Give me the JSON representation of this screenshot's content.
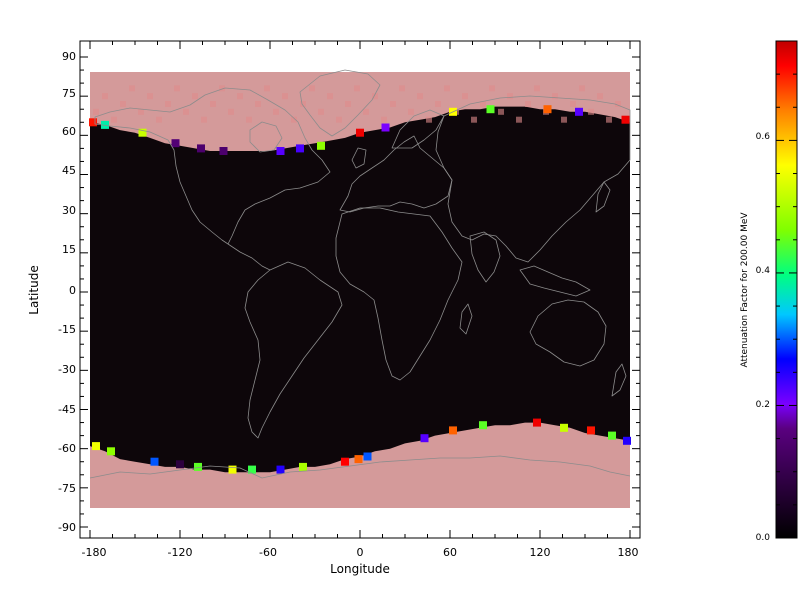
{
  "chart_data": {
    "type": "heatmap",
    "projection": "equirectangular world map with coastlines",
    "xlabel": "Longitude",
    "ylabel": "Latitude",
    "xlim": [
      -180,
      180
    ],
    "ylim": [
      -90,
      90
    ],
    "x_ticks": [
      "-180",
      "-120",
      "-60",
      "0",
      "60",
      "120",
      "180"
    ],
    "y_ticks": [
      "90",
      "75",
      "60",
      "45",
      "30",
      "15",
      "0",
      "-15",
      "-30",
      "-45",
      "-60",
      "-75",
      "-90"
    ],
    "colorbar": {
      "label": "Attenuation Factor for 200.00 MeV",
      "range": [
        0.0,
        0.75
      ],
      "ticks": [
        "0.0",
        "0.2",
        "0.4",
        "0.6"
      ],
      "colormap": [
        "#000000",
        "#5a0080",
        "#7a00ff",
        "#0000ff",
        "#00c8ff",
        "#00ff80",
        "#80ff00",
        "#ffff00",
        "#ff8000",
        "#ff0000",
        "#c00000"
      ]
    },
    "colors": {
      "background_field": "#0d060a",
      "polar_fill": "#d49a9a",
      "coastline": "#8c8c8c"
    },
    "north_boundary": [
      [
        -180,
        65
      ],
      [
        -170,
        64
      ],
      [
        -160,
        62
      ],
      [
        -150,
        61
      ],
      [
        -140,
        59
      ],
      [
        -130,
        57
      ],
      [
        -120,
        56
      ],
      [
        -110,
        55
      ],
      [
        -100,
        54
      ],
      [
        -90,
        54
      ],
      [
        -80,
        54
      ],
      [
        -70,
        54
      ],
      [
        -60,
        54
      ],
      [
        -50,
        55
      ],
      [
        -40,
        56
      ],
      [
        -30,
        57
      ],
      [
        -20,
        58
      ],
      [
        -10,
        59
      ],
      [
        0,
        61
      ],
      [
        10,
        62
      ],
      [
        20,
        63
      ],
      [
        30,
        65
      ],
      [
        40,
        66
      ],
      [
        50,
        67
      ],
      [
        60,
        69
      ],
      [
        70,
        70
      ],
      [
        80,
        70
      ],
      [
        90,
        71
      ],
      [
        100,
        71
      ],
      [
        110,
        71
      ],
      [
        120,
        70
      ],
      [
        130,
        70
      ],
      [
        140,
        69
      ],
      [
        150,
        69
      ],
      [
        160,
        68
      ],
      [
        170,
        67
      ],
      [
        180,
        65
      ]
    ],
    "south_boundary": [
      [
        -180,
        -59
      ],
      [
        -170,
        -61
      ],
      [
        -160,
        -64
      ],
      [
        -150,
        -65
      ],
      [
        -140,
        -66
      ],
      [
        -130,
        -67
      ],
      [
        -120,
        -67
      ],
      [
        -110,
        -68
      ],
      [
        -100,
        -68
      ],
      [
        -90,
        -69
      ],
      [
        -80,
        -69
      ],
      [
        -70,
        -69
      ],
      [
        -60,
        -69
      ],
      [
        -50,
        -68
      ],
      [
        -40,
        -67
      ],
      [
        -30,
        -67
      ],
      [
        -20,
        -66
      ],
      [
        -10,
        -64
      ],
      [
        0,
        -63
      ],
      [
        10,
        -61
      ],
      [
        20,
        -60
      ],
      [
        30,
        -58
      ],
      [
        40,
        -57
      ],
      [
        50,
        -55
      ],
      [
        60,
        -54
      ],
      [
        70,
        -53
      ],
      [
        80,
        -52
      ],
      [
        90,
        -51
      ],
      [
        100,
        -51
      ],
      [
        110,
        -50
      ],
      [
        120,
        -50
      ],
      [
        130,
        -51
      ],
      [
        140,
        -52
      ],
      [
        150,
        -54
      ],
      [
        160,
        -55
      ],
      [
        170,
        -56
      ],
      [
        180,
        -57
      ]
    ],
    "boundary_points": [
      {
        "lon": -178,
        "lat": 65,
        "v": 0.7
      },
      {
        "lon": -170,
        "lat": 64,
        "v": 0.38
      },
      {
        "lon": -145,
        "lat": 61,
        "v": 0.52
      },
      {
        "lon": -123,
        "lat": 57,
        "v": 0.15
      },
      {
        "lon": -106,
        "lat": 55,
        "v": 0.14
      },
      {
        "lon": -91,
        "lat": 54,
        "v": 0.14
      },
      {
        "lon": -53,
        "lat": 54,
        "v": 0.22
      },
      {
        "lon": -40,
        "lat": 55,
        "v": 0.23
      },
      {
        "lon": -26,
        "lat": 56,
        "v": 0.48
      },
      {
        "lon": 0,
        "lat": 61,
        "v": 0.72
      },
      {
        "lon": 17,
        "lat": 63,
        "v": 0.2
      },
      {
        "lon": 62,
        "lat": 69,
        "v": 0.56
      },
      {
        "lon": 87,
        "lat": 70,
        "v": 0.45
      },
      {
        "lon": 125,
        "lat": 70,
        "v": 0.66
      },
      {
        "lon": 146,
        "lat": 69,
        "v": 0.22
      },
      {
        "lon": 177,
        "lat": 66,
        "v": 0.72
      },
      {
        "lon": -176,
        "lat": -59,
        "v": 0.55
      },
      {
        "lon": -166,
        "lat": -61,
        "v": 0.48
      },
      {
        "lon": -137,
        "lat": -65,
        "v": 0.3
      },
      {
        "lon": -120,
        "lat": -66,
        "v": 0.08
      },
      {
        "lon": -108,
        "lat": -67,
        "v": 0.45
      },
      {
        "lon": -85,
        "lat": -68,
        "v": 0.55
      },
      {
        "lon": -72,
        "lat": -68,
        "v": 0.43
      },
      {
        "lon": -53,
        "lat": -68,
        "v": 0.25
      },
      {
        "lon": -38,
        "lat": -67,
        "v": 0.5
      },
      {
        "lon": -10,
        "lat": -65,
        "v": 0.71
      },
      {
        "lon": -1,
        "lat": -64,
        "v": 0.66
      },
      {
        "lon": 5,
        "lat": -63,
        "v": 0.3
      },
      {
        "lon": 43,
        "lat": -56,
        "v": 0.22
      },
      {
        "lon": 62,
        "lat": -53,
        "v": 0.66
      },
      {
        "lon": 82,
        "lat": -51,
        "v": 0.45
      },
      {
        "lon": 118,
        "lat": -50,
        "v": 0.72
      },
      {
        "lon": 136,
        "lat": -52,
        "v": 0.52
      },
      {
        "lon": 154,
        "lat": -53,
        "v": 0.7
      },
      {
        "lon": 168,
        "lat": -55,
        "v": 0.45
      },
      {
        "lon": 178,
        "lat": -57,
        "v": 0.25
      }
    ]
  }
}
